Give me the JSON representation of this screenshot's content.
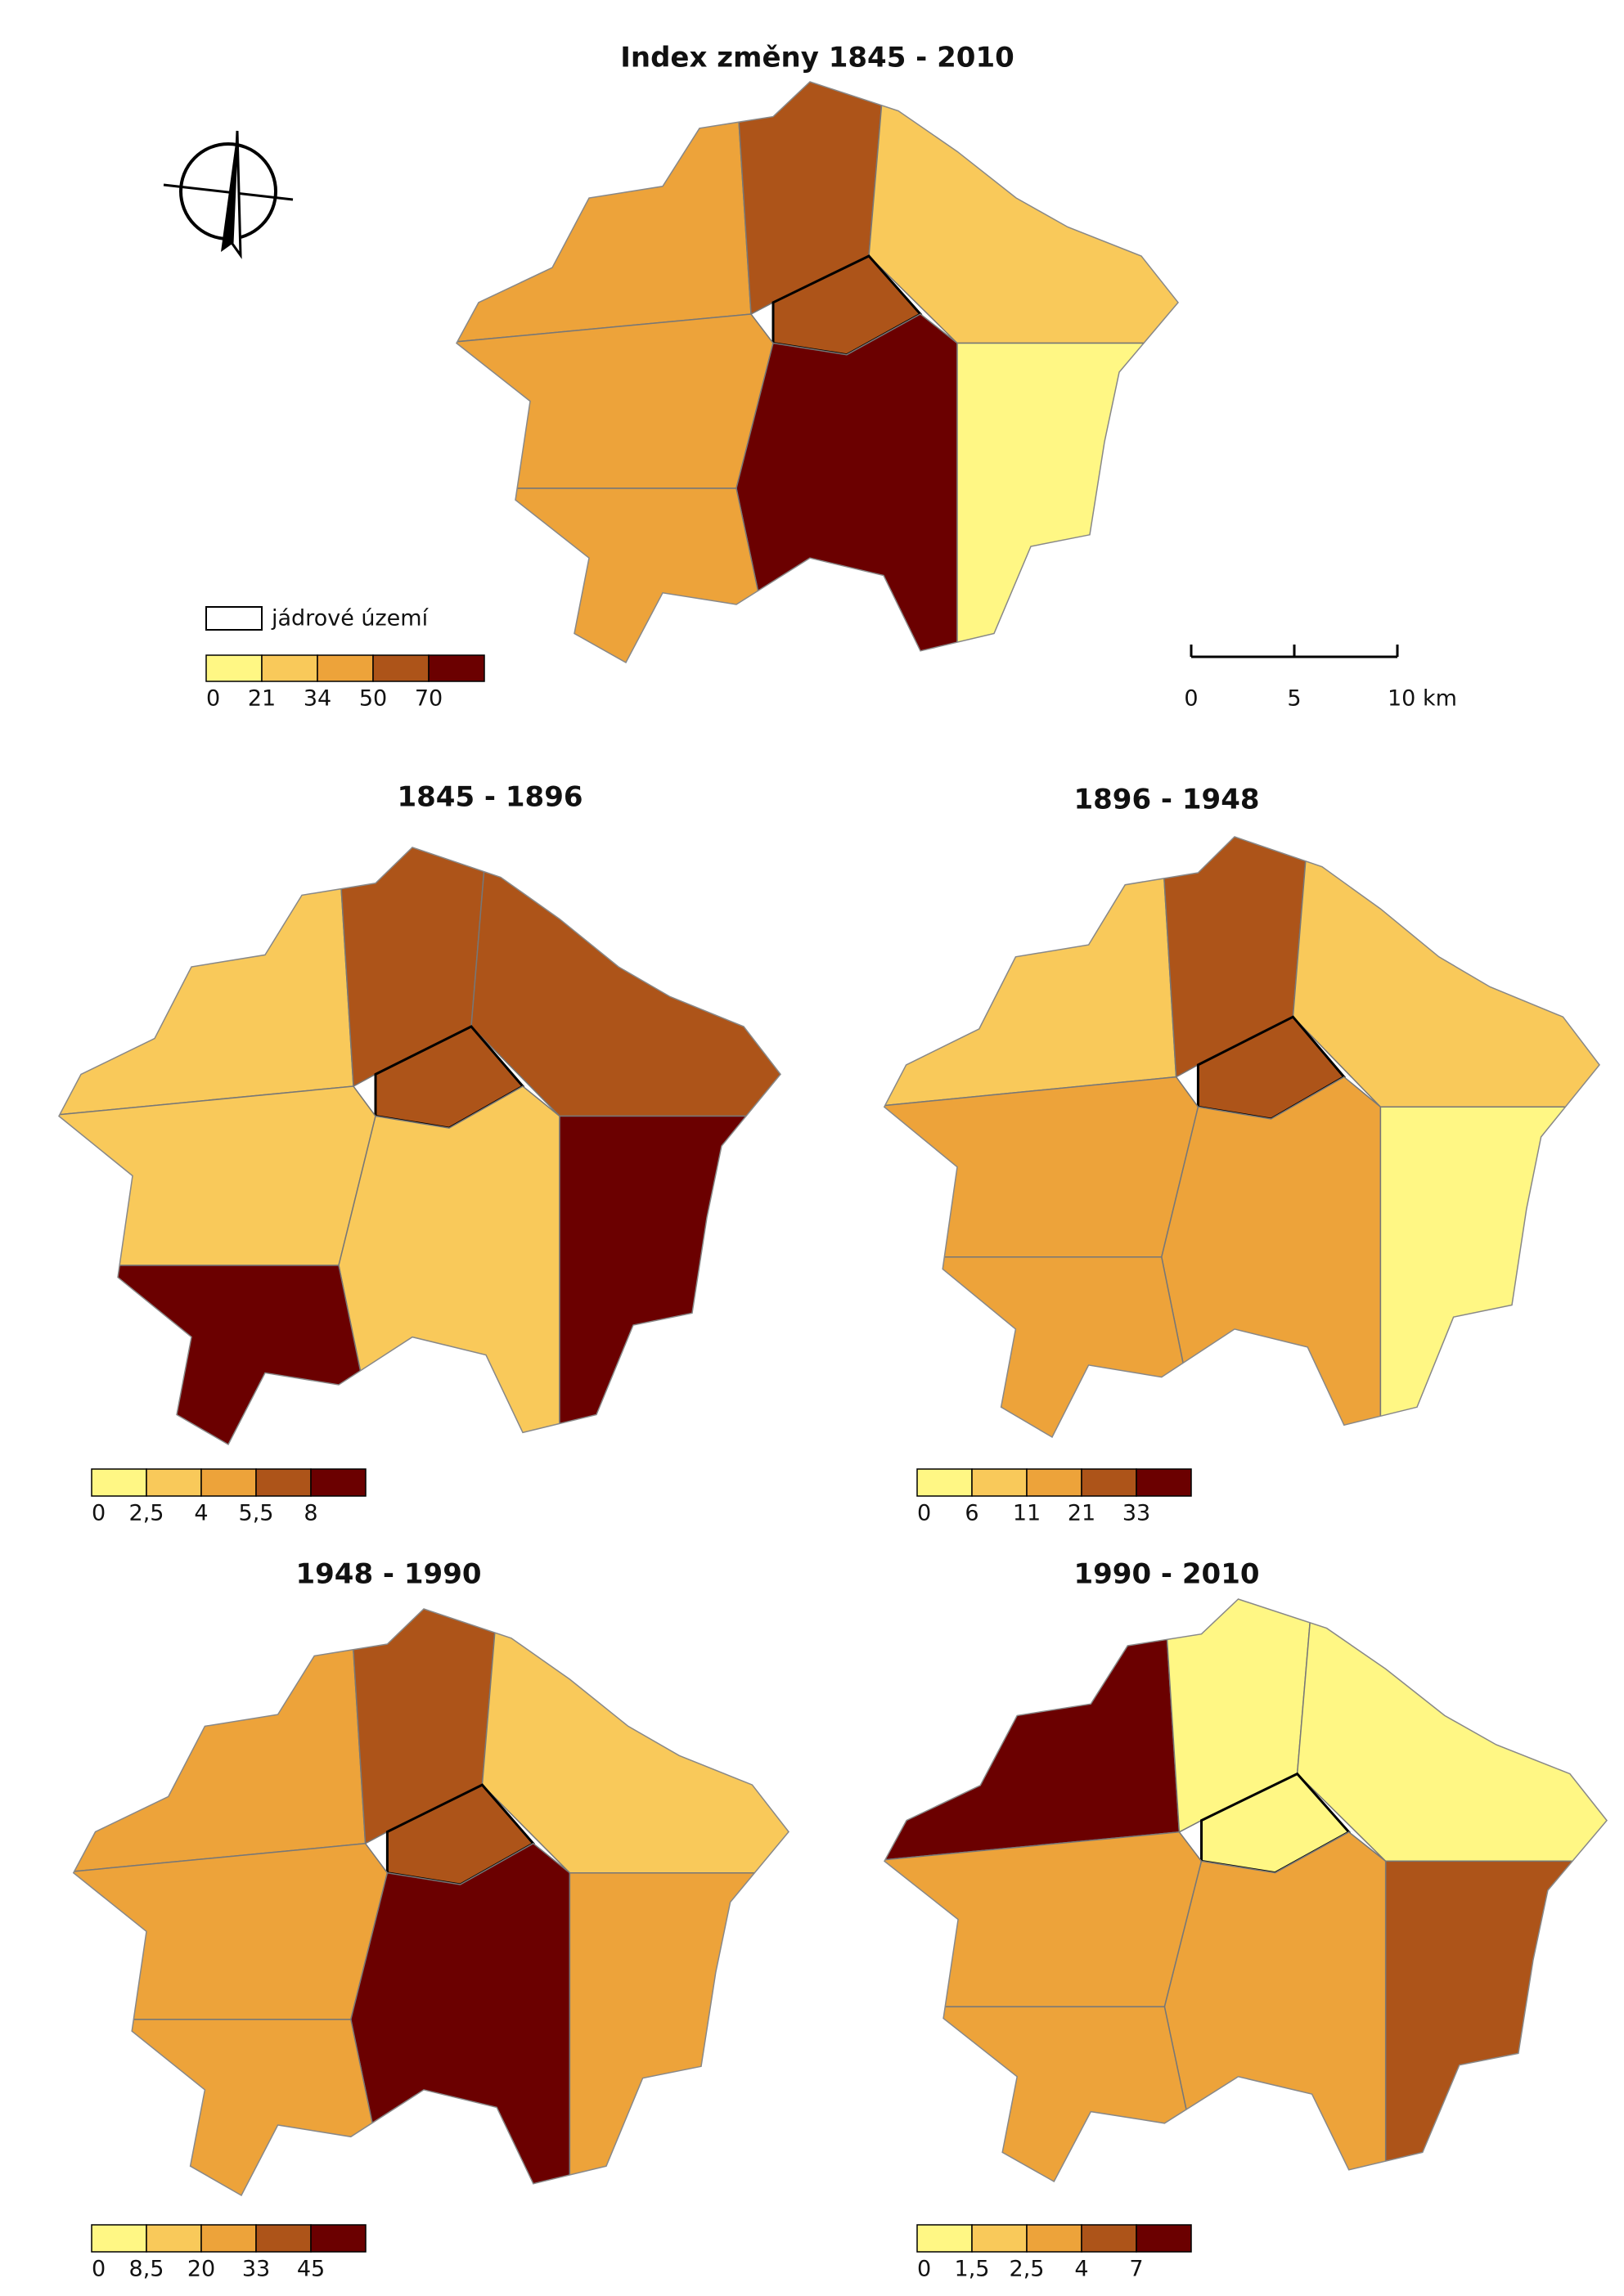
{
  "maps": [
    {
      "title": "Index změny 1845 - 2010",
      "core_label": "jádrové území",
      "legend": {
        "colors": [
          "#fff784",
          "#f9c95a",
          "#eda33a",
          "#ad5419",
          "#6b0000"
        ],
        "labels": [
          "0",
          "21",
          "34",
          "50",
          "70"
        ]
      },
      "scale_bar": [
        "0",
        "5",
        "10 km"
      ]
    },
    {
      "title": "1845 - 1896",
      "legend": {
        "colors": [
          "#fff784",
          "#f9c95a",
          "#eda33a",
          "#ad5419",
          "#6b0000"
        ],
        "labels": [
          "0",
          "2,5",
          "4",
          "5,5",
          "8"
        ]
      }
    },
    {
      "title": "1896 - 1948",
      "legend": {
        "colors": [
          "#fff784",
          "#f9c95a",
          "#eda33a",
          "#ad5419",
          "#6b0000"
        ],
        "labels": [
          "0",
          "6",
          "11",
          "21",
          "33"
        ]
      }
    },
    {
      "title": "1948 - 1990",
      "legend": {
        "colors": [
          "#fff784",
          "#f9c95a",
          "#eda33a",
          "#ad5419",
          "#6b0000"
        ],
        "labels": [
          "0",
          "8,5",
          "20",
          "33",
          "45"
        ]
      }
    },
    {
      "title": "1990 - 2010",
      "legend": {
        "colors": [
          "#fff784",
          "#f9c95a",
          "#eda33a",
          "#ad5419",
          "#6b0000"
        ],
        "labels": [
          "0",
          "1,5",
          "2,5",
          "4",
          "7"
        ]
      }
    }
  ]
}
